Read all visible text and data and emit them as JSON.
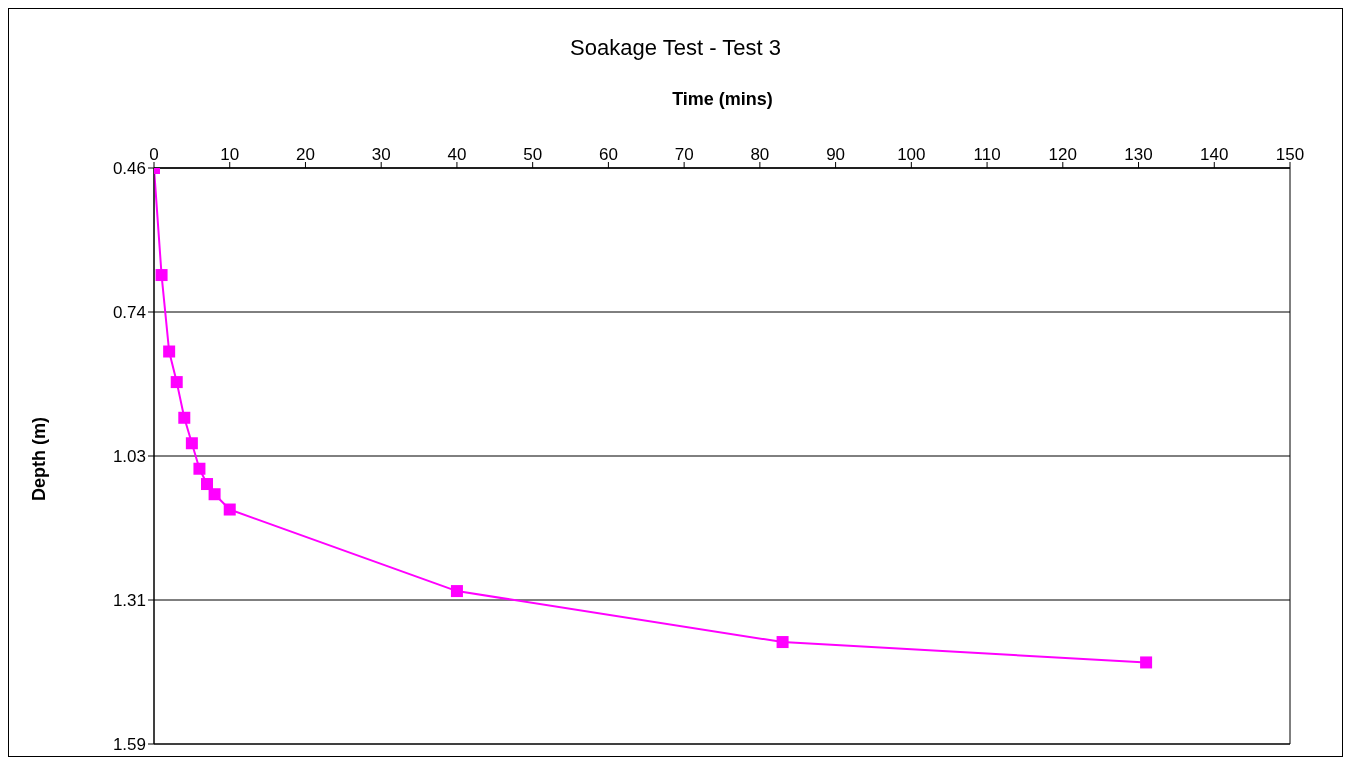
{
  "chart_data": {
    "type": "line",
    "title": "Soakage Test - Test 3",
    "xlabel": "Time (mins)",
    "ylabel": "Depth (m)",
    "x": [
      0,
      1,
      2,
      3,
      4,
      5,
      6,
      7,
      8,
      10,
      40,
      83,
      131
    ],
    "series": [
      {
        "color": "#ff00ff",
        "values": [
          0.46,
          0.67,
          0.82,
          0.88,
          0.95,
          1.0,
          1.05,
          1.08,
          1.1,
          1.13,
          1.29,
          1.39,
          1.43
        ]
      }
    ],
    "xlim": [
      0,
      150
    ],
    "xticks": [
      0,
      10,
      20,
      30,
      40,
      50,
      60,
      70,
      80,
      90,
      100,
      110,
      120,
      130,
      140,
      150
    ],
    "ylim": [
      1.59,
      0.46
    ],
    "yticks": [
      {
        "value": 0.46,
        "label": "0.46"
      },
      {
        "value": 0.7425,
        "label": "0.74"
      },
      {
        "value": 1.025,
        "label": "1.03"
      },
      {
        "value": 1.3075,
        "label": "1.31"
      },
      {
        "value": 1.59,
        "label": "1.59"
      }
    ],
    "grid": "y",
    "legend": false,
    "marker": "square",
    "line_style": "solid"
  }
}
